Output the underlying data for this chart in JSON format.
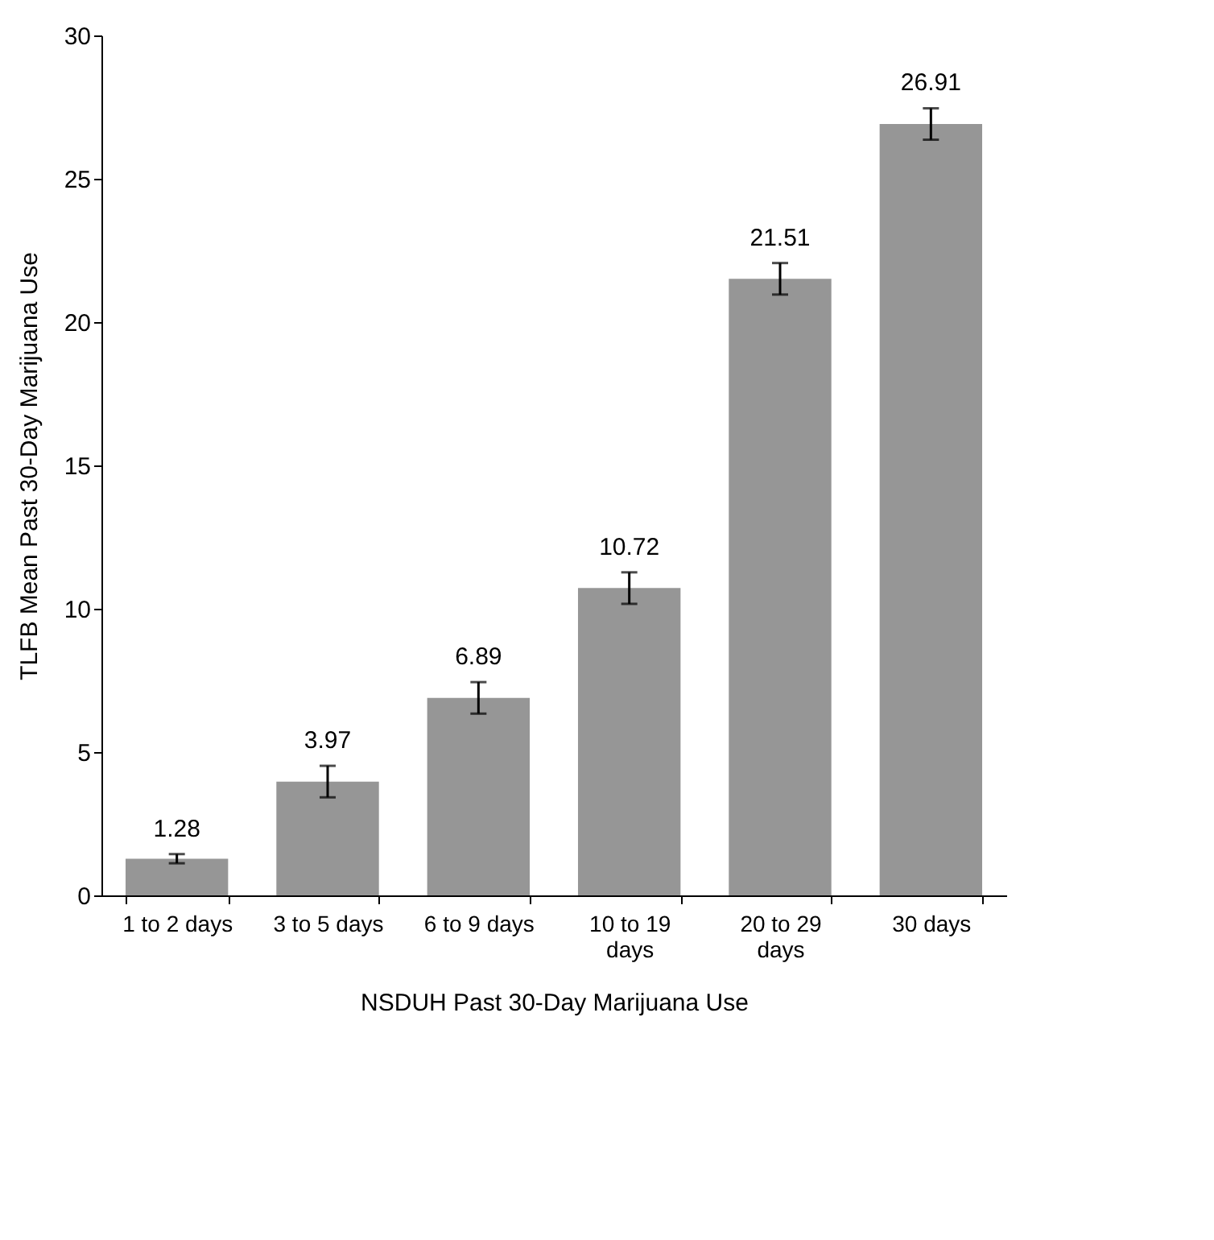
{
  "chart_data": {
    "type": "bar",
    "xlabel": "NSDUH Past 30-Day Marijuana Use",
    "ylabel": "TLFB Mean Past 30-Day Marijuana Use",
    "categories": [
      "1 to 2 days",
      "3 to 5 days",
      "6 to 9 days",
      "10 to 19 days",
      "20 to 29 days",
      "30 days"
    ],
    "values": [
      1.28,
      3.97,
      6.89,
      10.72,
      21.51,
      26.91
    ],
    "errors": [
      0.16,
      0.55,
      0.55,
      0.55,
      0.55,
      0.55
    ],
    "color": "#969696",
    "ylim": [
      0,
      30
    ],
    "yticks": [
      0,
      5,
      10,
      15,
      20,
      25,
      30
    ],
    "grid": false,
    "data_labels": true
  }
}
